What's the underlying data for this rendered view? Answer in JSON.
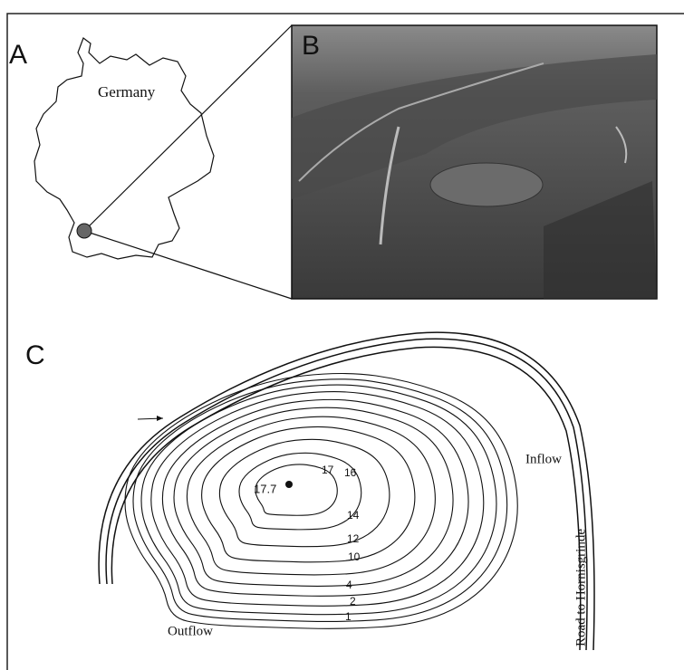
{
  "panels": {
    "a": {
      "label": "A",
      "country": "Germany"
    },
    "b": {
      "label": "B"
    },
    "c": {
      "label": "C",
      "depths": {
        "max": "17.7",
        "d17": "17",
        "d16": "16",
        "d14": "14",
        "d12": "12",
        "d10": "10",
        "d4": "4",
        "d2": "2",
        "d1": "1"
      },
      "inflow": "Inflow",
      "outflow": "Outflow",
      "road": "Road to Hornisgrinde"
    }
  }
}
